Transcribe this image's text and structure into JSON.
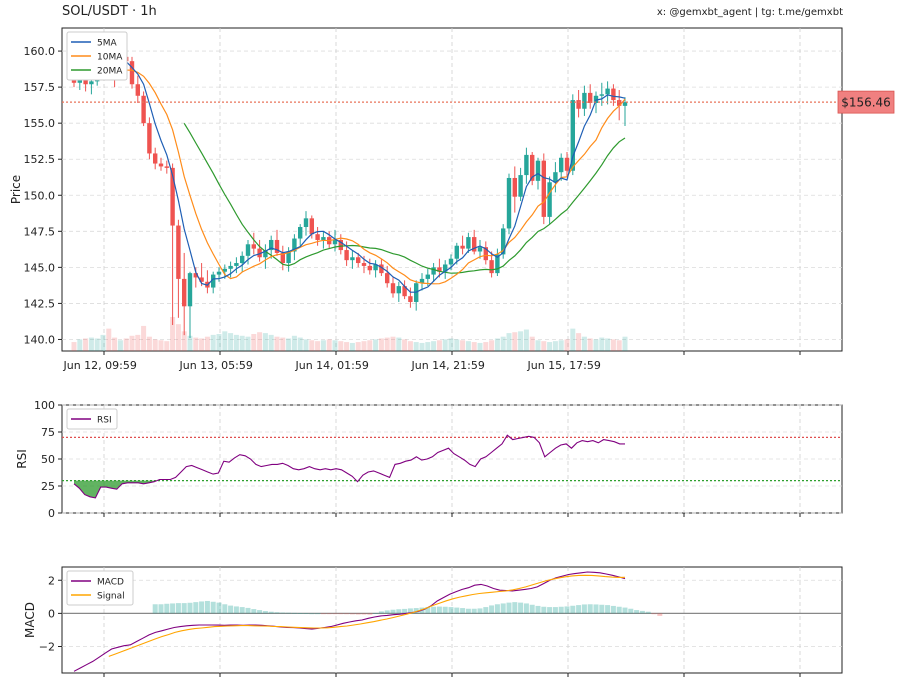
{
  "header": {
    "title": "SOL/USDT · 1h",
    "credit": "x: @gemxbt_agent | tg: t.me/gemxbt"
  },
  "colors": {
    "up": "#26a69a",
    "down": "#ef5350",
    "ma5": "#1f5fb5",
    "ma10": "#ff8c1a",
    "ma20": "#2e9a2e",
    "rsi": "#800080",
    "macd": "#800080",
    "signal": "#ffa500",
    "price_line": "#e8735a",
    "price_tag_bg": "#f08080"
  },
  "chart_data": [
    {
      "type": "candlestick",
      "ylabel": "Price",
      "ylim": [
        139.2,
        161.6
      ],
      "yticks": [
        "140.0",
        "142.5",
        "145.0",
        "147.5",
        "150.0",
        "152.5",
        "155.0",
        "157.5",
        "160.0"
      ],
      "xtick_labels": [
        "Jun 12, 09:59",
        "Jun 13, 05:59",
        "Jun 14, 01:59",
        "Jun 14, 21:59",
        "Jun 15, 17:59"
      ],
      "xtick_index": [
        4,
        24,
        44,
        64,
        84
      ],
      "current_price": 156.46,
      "current_price_label": "$156.46",
      "legend": [
        "5MA",
        "10MA",
        "20MA"
      ],
      "legend_position": "upper-left",
      "candles": [
        [
          158.0,
          158.3,
          157.5,
          157.8
        ],
        [
          157.8,
          158.6,
          157.3,
          158.4
        ],
        [
          158.4,
          159.0,
          157.2,
          157.7
        ],
        [
          157.7,
          158.2,
          157.0,
          157.9
        ],
        [
          157.9,
          159.2,
          157.6,
          158.6
        ],
        [
          158.6,
          160.2,
          158.0,
          159.8
        ],
        [
          159.8,
          160.5,
          159.0,
          159.2
        ],
        [
          159.2,
          160.1,
          157.5,
          158.5
        ],
        [
          158.5,
          159.9,
          158.0,
          159.6
        ],
        [
          159.6,
          160.4,
          158.9,
          159.3
        ],
        [
          159.3,
          159.6,
          157.4,
          157.7
        ],
        [
          157.7,
          158.3,
          156.4,
          156.9
        ],
        [
          156.9,
          157.2,
          154.8,
          155.0
        ],
        [
          155.0,
          155.4,
          152.5,
          152.9
        ],
        [
          152.9,
          153.3,
          151.8,
          152.2
        ],
        [
          152.2,
          152.6,
          151.7,
          152.0
        ],
        [
          152.0,
          152.4,
          151.5,
          151.9
        ],
        [
          151.9,
          152.2,
          141.0,
          147.9
        ],
        [
          147.9,
          148.3,
          141.5,
          144.2
        ],
        [
          144.2,
          146.0,
          140.3,
          142.3
        ],
        [
          142.3,
          144.7,
          140.1,
          144.6
        ],
        [
          144.6,
          145.0,
          143.6,
          144.3
        ],
        [
          144.3,
          145.3,
          143.7,
          144.0
        ],
        [
          144.0,
          144.8,
          143.2,
          143.6
        ],
        [
          143.6,
          144.7,
          143.2,
          144.5
        ],
        [
          144.5,
          145.0,
          144.0,
          144.7
        ],
        [
          144.7,
          145.2,
          144.2,
          144.9
        ],
        [
          144.9,
          145.4,
          144.3,
          145.1
        ],
        [
          145.1,
          145.7,
          144.6,
          145.3
        ],
        [
          145.3,
          146.1,
          144.7,
          145.8
        ],
        [
          145.8,
          146.9,
          145.2,
          146.6
        ],
        [
          146.6,
          147.4,
          145.9,
          146.3
        ],
        [
          146.3,
          146.9,
          145.4,
          145.7
        ],
        [
          145.7,
          146.6,
          144.9,
          146.2
        ],
        [
          146.2,
          147.2,
          145.6,
          146.9
        ],
        [
          146.9,
          147.6,
          145.8,
          146.0
        ],
        [
          146.0,
          146.5,
          144.8,
          145.3
        ],
        [
          145.3,
          146.4,
          144.7,
          146.1
        ],
        [
          146.1,
          147.3,
          145.5,
          147.0
        ],
        [
          147.0,
          148.0,
          146.5,
          147.8
        ],
        [
          147.8,
          148.9,
          147.2,
          148.4
        ],
        [
          148.4,
          148.6,
          147.0,
          147.3
        ],
        [
          147.3,
          147.8,
          146.5,
          146.9
        ],
        [
          146.9,
          147.5,
          146.3,
          147.1
        ],
        [
          147.1,
          147.5,
          146.3,
          146.6
        ],
        [
          146.6,
          147.6,
          146.1,
          146.9
        ],
        [
          146.9,
          147.3,
          145.9,
          146.2
        ],
        [
          146.2,
          146.8,
          145.1,
          145.5
        ],
        [
          145.5,
          146.2,
          144.9,
          145.7
        ],
        [
          145.7,
          146.0,
          145.0,
          145.3
        ],
        [
          145.3,
          145.8,
          144.6,
          145.1
        ],
        [
          145.1,
          145.6,
          144.5,
          144.8
        ],
        [
          144.8,
          145.5,
          144.3,
          145.2
        ],
        [
          145.2,
          145.6,
          144.4,
          144.6
        ],
        [
          144.6,
          145.1,
          143.6,
          143.9
        ],
        [
          143.9,
          144.3,
          142.9,
          143.2
        ],
        [
          143.2,
          144.0,
          142.6,
          143.7
        ],
        [
          143.7,
          144.1,
          142.8,
          143.0
        ],
        [
          143.0,
          143.6,
          142.2,
          142.6
        ],
        [
          142.6,
          144.1,
          142.0,
          143.9
        ],
        [
          143.9,
          144.6,
          143.4,
          144.2
        ],
        [
          144.2,
          144.9,
          143.7,
          144.5
        ],
        [
          144.5,
          145.3,
          144.0,
          145.0
        ],
        [
          145.0,
          145.6,
          144.3,
          144.7
        ],
        [
          144.7,
          145.5,
          144.2,
          145.2
        ],
        [
          145.2,
          145.9,
          144.8,
          145.6
        ],
        [
          145.6,
          146.7,
          145.2,
          146.5
        ],
        [
          146.5,
          147.2,
          145.9,
          146.3
        ],
        [
          146.3,
          147.4,
          146.0,
          147.1
        ],
        [
          147.1,
          147.6,
          145.9,
          146.1
        ],
        [
          146.1,
          146.9,
          145.6,
          146.4
        ],
        [
          146.4,
          146.8,
          145.2,
          145.5
        ],
        [
          145.5,
          146.1,
          144.3,
          144.6
        ],
        [
          144.6,
          146.3,
          144.4,
          145.9
        ],
        [
          145.9,
          148.0,
          145.6,
          147.7
        ],
        [
          147.7,
          151.5,
          147.3,
          151.2
        ],
        [
          151.2,
          152.0,
          148.8,
          149.9
        ],
        [
          149.9,
          151.9,
          149.6,
          151.4
        ],
        [
          151.4,
          153.3,
          150.8,
          152.8
        ],
        [
          152.8,
          153.0,
          150.7,
          151.0
        ],
        [
          151.0,
          152.6,
          150.4,
          152.4
        ],
        [
          152.4,
          152.9,
          148.0,
          148.5
        ],
        [
          148.5,
          151.3,
          148.0,
          150.9
        ],
        [
          150.9,
          152.3,
          150.2,
          151.6
        ],
        [
          151.6,
          152.9,
          151.0,
          152.6
        ],
        [
          152.6,
          153.0,
          151.3,
          151.7
        ],
        [
          151.7,
          157.0,
          151.4,
          156.6
        ],
        [
          156.6,
          157.3,
          155.4,
          156.0
        ],
        [
          156.0,
          157.6,
          155.5,
          157.1
        ],
        [
          157.1,
          157.7,
          156.0,
          156.4
        ],
        [
          156.4,
          157.2,
          155.7,
          156.9
        ],
        [
          156.9,
          157.8,
          156.2,
          157.0
        ],
        [
          157.0,
          157.9,
          156.3,
          157.4
        ],
        [
          157.4,
          157.7,
          156.2,
          156.6
        ],
        [
          156.6,
          157.3,
          155.2,
          156.2
        ],
        [
          156.2,
          156.8,
          154.8,
          156.46
        ]
      ],
      "volume": [
        10,
        13,
        14,
        15,
        14,
        18,
        25,
        15,
        12,
        14,
        17,
        18,
        28,
        16,
        13,
        12,
        11,
        38,
        30,
        22,
        17,
        15,
        14,
        16,
        18,
        19,
        22,
        20,
        18,
        17,
        16,
        19,
        21,
        20,
        18,
        16,
        15,
        14,
        17,
        15,
        13,
        12,
        11,
        12,
        13,
        12,
        11,
        10,
        9,
        10,
        11,
        12,
        13,
        14,
        15,
        16,
        15,
        13,
        11,
        10,
        9,
        10,
        11,
        12,
        13,
        14,
        13,
        12,
        11,
        10,
        9,
        10,
        12,
        14,
        16,
        20,
        21,
        22,
        24,
        16,
        12,
        11,
        10,
        11,
        12,
        13,
        25,
        20,
        16,
        14,
        13,
        15,
        14,
        13,
        12,
        16
      ]
    },
    {
      "type": "line",
      "ylabel": "RSI",
      "ylim": [
        0,
        100
      ],
      "yticks": [
        0,
        25,
        50,
        75,
        100
      ],
      "overbought": 70,
      "oversold": 30,
      "legend": [
        "RSI"
      ],
      "x_start": 0,
      "values": [
        27,
        23,
        17,
        15,
        14,
        24,
        24,
        23,
        22,
        27,
        28,
        28,
        28,
        27,
        28,
        29,
        31,
        31,
        31,
        33,
        38,
        43,
        44,
        42,
        40,
        38,
        36,
        37,
        48,
        47,
        51,
        54,
        53,
        50,
        45,
        43,
        44,
        45,
        45,
        46,
        44,
        41,
        40,
        41,
        43,
        41,
        40,
        41,
        40,
        41,
        40,
        37,
        34,
        29,
        35,
        38,
        39,
        37,
        35,
        33,
        45,
        46,
        48,
        49,
        52,
        49,
        50,
        52,
        56,
        58,
        60,
        55,
        52,
        49,
        45,
        43,
        50,
        52,
        56,
        60,
        64,
        72,
        68,
        69,
        70,
        71,
        70,
        65,
        52,
        56,
        60,
        63,
        64,
        60,
        65,
        67,
        66,
        67,
        65,
        68,
        67,
        66,
        64,
        64
      ]
    },
    {
      "type": "line+bar",
      "ylabel": "MACD",
      "ylim": [
        -3.6,
        2.8
      ],
      "yticks": [
        -2,
        0,
        2
      ],
      "legend": [
        "MACD",
        "Signal"
      ],
      "macd": {
        "x_start": 0,
        "values": [
          -3.5,
          -3.3,
          -3.1,
          -2.9,
          -2.65,
          -2.4,
          -2.15,
          -2.05,
          -1.95,
          -1.9,
          -1.7,
          -1.5,
          -1.3,
          -1.15,
          -1.05,
          -0.95,
          -0.85,
          -0.8,
          -0.75,
          -0.72,
          -0.7,
          -0.7,
          -0.7,
          -0.71,
          -0.72,
          -0.71,
          -0.7,
          -0.72,
          -0.7,
          -0.7,
          -0.72,
          -0.75,
          -0.78,
          -0.82,
          -0.85,
          -0.86,
          -0.88,
          -0.92,
          -0.95,
          -0.9,
          -0.85,
          -0.8,
          -0.7,
          -0.6,
          -0.52,
          -0.45,
          -0.4,
          -0.3,
          -0.22,
          -0.15,
          -0.12,
          -0.08,
          -0.05,
          0.0,
          0.05,
          0.12,
          0.25,
          0.45,
          0.75,
          0.95,
          1.15,
          1.3,
          1.45,
          1.55,
          1.7,
          1.75,
          1.65,
          1.5,
          1.4,
          1.38,
          1.36,
          1.4,
          1.45,
          1.5,
          1.6,
          1.8,
          2.0,
          2.15,
          2.25,
          2.35,
          2.4,
          2.45,
          2.5,
          2.48,
          2.45,
          2.38,
          2.3,
          2.2,
          2.1
        ]
      },
      "signal": {
        "x_start": 6,
        "values": [
          -2.6,
          -2.45,
          -2.3,
          -2.15,
          -2.0,
          -1.85,
          -1.7,
          -1.55,
          -1.4,
          -1.28,
          -1.15,
          -1.05,
          -0.98,
          -0.92,
          -0.88,
          -0.84,
          -0.8,
          -0.78,
          -0.76,
          -0.75,
          -0.74,
          -0.74,
          -0.75,
          -0.76,
          -0.77,
          -0.79,
          -0.8,
          -0.82,
          -0.84,
          -0.86,
          -0.87,
          -0.88,
          -0.88,
          -0.87,
          -0.84,
          -0.8,
          -0.76,
          -0.7,
          -0.64,
          -0.57,
          -0.5,
          -0.42,
          -0.34,
          -0.25,
          -0.15,
          -0.05,
          0.05,
          0.18,
          0.32,
          0.48,
          0.62,
          0.76,
          0.88,
          0.98,
          1.06,
          1.14,
          1.2,
          1.24,
          1.28,
          1.32,
          1.36,
          1.42,
          1.5,
          1.6,
          1.72,
          1.84,
          1.96,
          2.06,
          2.14,
          2.21,
          2.26,
          2.29,
          2.3,
          2.29,
          2.26,
          2.22,
          2.19,
          2.17,
          2.18
        ]
      },
      "histogram": {
        "x_start": 14,
        "values": [
          0.55,
          0.55,
          0.58,
          0.6,
          0.62,
          0.62,
          0.64,
          0.68,
          0.72,
          0.75,
          0.7,
          0.65,
          0.55,
          0.47,
          0.42,
          0.38,
          0.33,
          0.26,
          0.2,
          0.14,
          0.1,
          0.07,
          0.05,
          0.04,
          0.03,
          0.02,
          0.01,
          0.0,
          0.0,
          -0.02,
          -0.02,
          -0.03,
          -0.04,
          -0.05,
          -0.06,
          -0.07,
          -0.07,
          -0.08,
          0.02,
          0.12,
          0.18,
          0.22,
          0.25,
          0.27,
          0.3,
          0.32,
          0.35,
          0.38,
          0.4,
          0.41,
          0.4,
          0.38,
          0.35,
          0.32,
          0.28,
          0.28,
          0.3,
          0.38,
          0.48,
          0.55,
          0.6,
          0.65,
          0.68,
          0.65,
          0.6,
          0.52,
          0.45,
          0.4,
          0.38,
          0.38,
          0.4,
          0.42,
          0.46,
          0.5,
          0.54,
          0.55,
          0.54,
          0.52,
          0.5,
          0.45,
          0.4,
          0.35,
          0.28,
          0.2,
          0.15,
          0.1,
          -0.05,
          -0.15
        ]
      }
    }
  ]
}
